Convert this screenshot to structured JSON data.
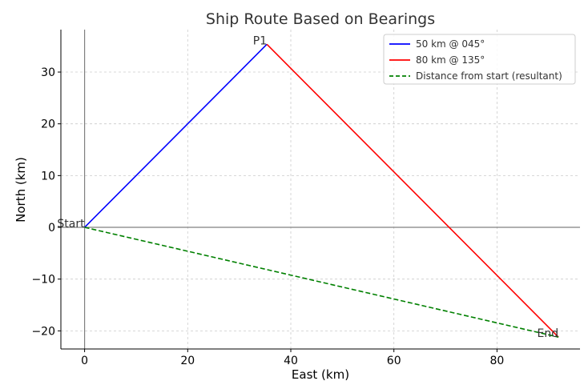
{
  "chart_data": {
    "type": "line",
    "title": "Ship Route Based on Bearings",
    "xlabel": "East (km)",
    "ylabel": "North (km)",
    "xlim": [
      -4.6,
      96.1
    ],
    "ylim": [
      -23.5,
      38.2
    ],
    "xticks": [
      0,
      20,
      40,
      60,
      80
    ],
    "yticks": [
      -20,
      -10,
      0,
      10,
      20,
      30
    ],
    "grid": true,
    "reference_lines": {
      "x": 0,
      "y": 0,
      "color": "#808080"
    },
    "legend_position": "top-right",
    "series": [
      {
        "name": "50 km @ 045°",
        "color": "#0000ff",
        "dash": "solid",
        "points": [
          [
            0,
            0
          ],
          [
            35.36,
            35.36
          ]
        ]
      },
      {
        "name": "80 km @ 135°",
        "color": "#ff0000",
        "dash": "solid",
        "points": [
          [
            35.36,
            35.36
          ],
          [
            91.92,
            -21.21
          ]
        ]
      },
      {
        "name": "Distance from start (resultant)",
        "color": "#008000",
        "dash": "dashed",
        "points": [
          [
            0,
            0
          ],
          [
            91.92,
            -21.21
          ]
        ]
      }
    ],
    "annotations": [
      {
        "text": "Start",
        "x": 0,
        "y": 0,
        "anchor": "end"
      },
      {
        "text": "P1",
        "x": 35.36,
        "y": 35.36,
        "anchor": "end"
      },
      {
        "text": "End",
        "x": 91.92,
        "y": -21.21,
        "anchor": "end"
      }
    ]
  }
}
